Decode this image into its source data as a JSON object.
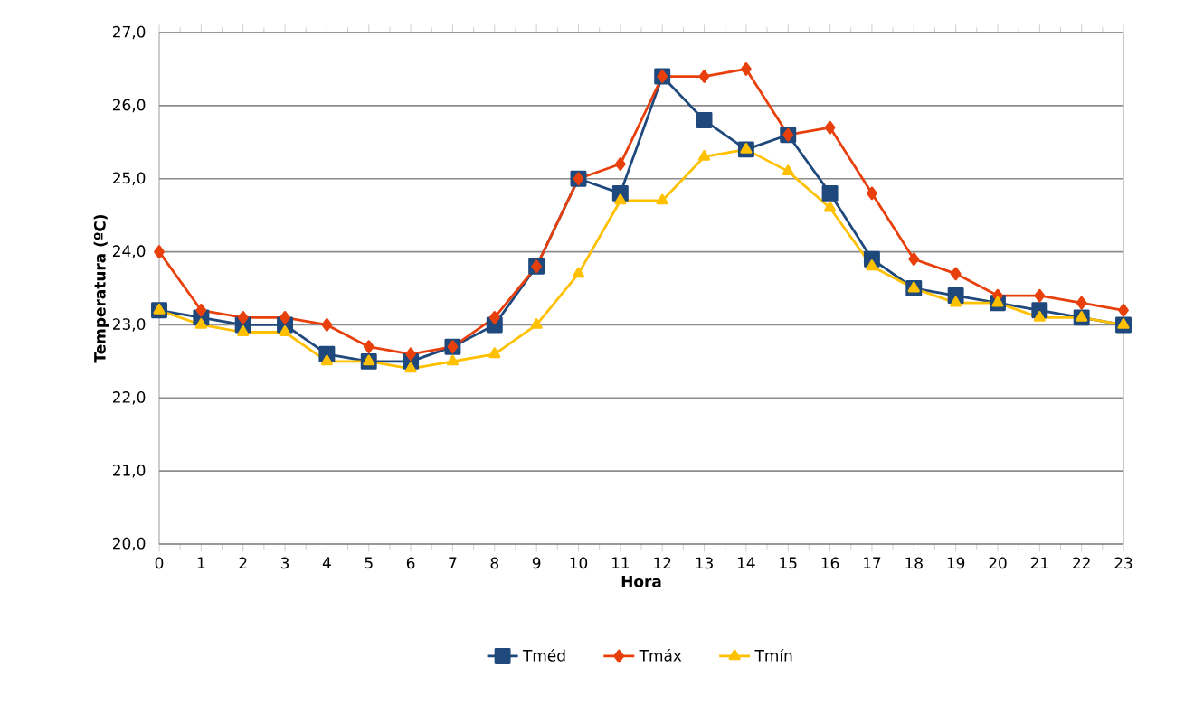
{
  "chart_data": {
    "type": "line",
    "xlabel": "Hora",
    "ylabel": "Temperatura (ºC)",
    "categories": [
      "0",
      "1",
      "2",
      "3",
      "4",
      "5",
      "6",
      "7",
      "8",
      "9",
      "10",
      "11",
      "12",
      "13",
      "14",
      "15",
      "16",
      "17",
      "18",
      "19",
      "20",
      "21",
      "22",
      "23"
    ],
    "series": [
      {
        "name": "Tméd",
        "color": "#1f497d",
        "marker": "square",
        "values": [
          23.2,
          23.1,
          23.0,
          23.0,
          22.6,
          22.5,
          22.5,
          22.7,
          23.0,
          23.8,
          25.0,
          24.8,
          26.4,
          25.8,
          25.4,
          25.6,
          24.8,
          23.9,
          23.5,
          23.4,
          23.3,
          23.2,
          23.1,
          23.0
        ]
      },
      {
        "name": "Tmáx",
        "color": "#e8400c",
        "marker": "diamond",
        "values": [
          24.0,
          23.2,
          23.1,
          23.1,
          23.0,
          22.7,
          22.6,
          22.7,
          23.1,
          23.8,
          25.0,
          25.2,
          26.4,
          26.4,
          26.5,
          25.6,
          25.7,
          24.8,
          23.9,
          23.7,
          23.4,
          23.4,
          23.3,
          23.2
        ]
      },
      {
        "name": "Tmín",
        "color": "#ffc000",
        "marker": "triangle",
        "values": [
          23.2,
          23.0,
          22.9,
          22.9,
          22.5,
          22.5,
          22.4,
          22.5,
          22.6,
          23.0,
          23.7,
          24.7,
          24.7,
          25.3,
          25.4,
          25.1,
          24.6,
          23.8,
          23.5,
          23.3,
          23.3,
          23.1,
          23.1,
          23.0
        ]
      }
    ],
    "ylim": [
      20,
      27
    ],
    "yticks": [
      {
        "value": 20,
        "label": "20,0"
      },
      {
        "value": 21,
        "label": "21,0"
      },
      {
        "value": 22,
        "label": "22,0"
      },
      {
        "value": 23,
        "label": "23,0"
      },
      {
        "value": 24,
        "label": "24,0"
      },
      {
        "value": 25,
        "label": "25,0"
      },
      {
        "value": 26,
        "label": "26,0"
      },
      {
        "value": 27,
        "label": "27,0"
      }
    ],
    "grid": "y",
    "legend": "bottom",
    "line_style": "solid"
  }
}
